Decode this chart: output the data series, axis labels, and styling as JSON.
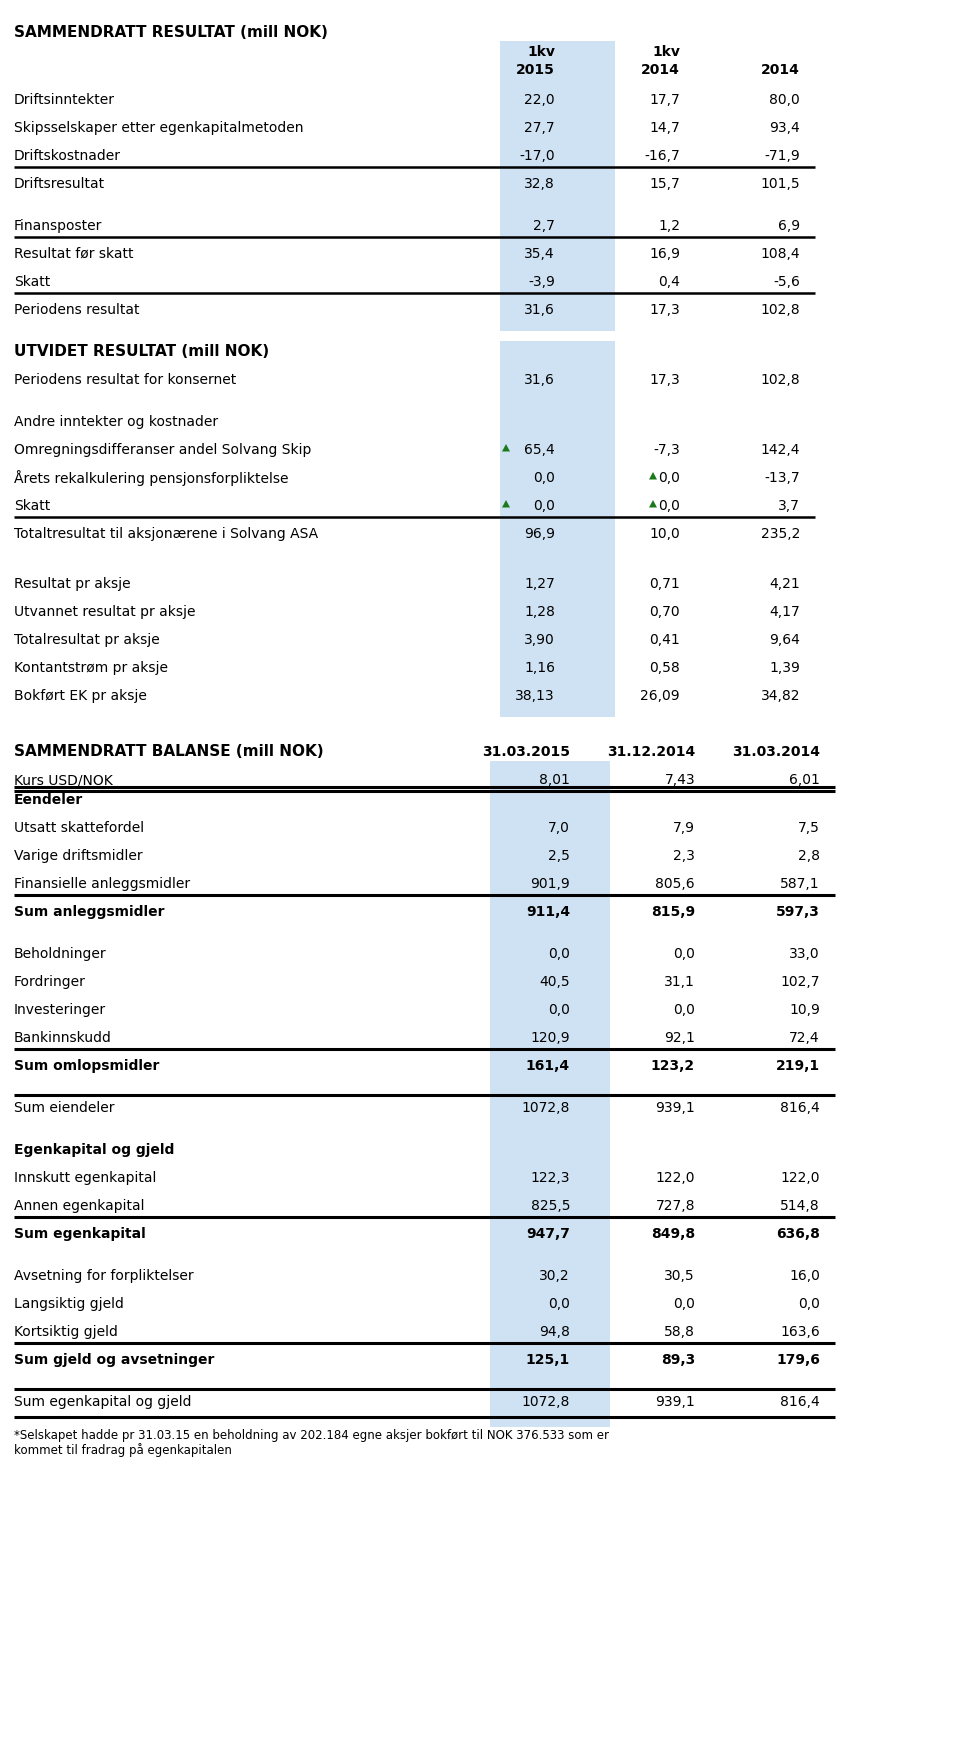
{
  "title1": "SAMMENDRATT RESULTAT (mill NOK)",
  "title2": "UTVIDET RESULTAT (mill NOK)",
  "title3": "SAMMENDRATT BALANSE (mill NOK)",
  "col_headers": [
    "1kv",
    "1kv",
    ""
  ],
  "col_years": [
    "2015",
    "2014",
    "2014"
  ],
  "section1_rows": [
    {
      "label": "Driftsinntekter",
      "v1": "22,0",
      "v2": "17,7",
      "v3": "80,0",
      "bold": false,
      "line_after": false,
      "empty": false
    },
    {
      "label": "Skipsselskaper etter egenkapitalmetoden",
      "v1": "27,7",
      "v2": "14,7",
      "v3": "93,4",
      "bold": false,
      "line_after": false,
      "empty": false
    },
    {
      "label": "Driftskostnader",
      "v1": "-17,0",
      "v2": "-16,7",
      "v3": "-71,9",
      "bold": false,
      "line_after": true,
      "empty": false
    },
    {
      "label": "Driftsresultat",
      "v1": "32,8",
      "v2": "15,7",
      "v3": "101,5",
      "bold": false,
      "line_after": false,
      "empty": false
    },
    {
      "label": "",
      "v1": "",
      "v2": "",
      "v3": "",
      "bold": false,
      "line_after": false,
      "empty": true
    },
    {
      "label": "Finansposter",
      "v1": "2,7",
      "v2": "1,2",
      "v3": "6,9",
      "bold": false,
      "line_after": true,
      "empty": false
    },
    {
      "label": "Resultat før skatt",
      "v1": "35,4",
      "v2": "16,9",
      "v3": "108,4",
      "bold": false,
      "line_after": false,
      "empty": false
    },
    {
      "label": "Skatt",
      "v1": "-3,9",
      "v2": "0,4",
      "v3": "-5,6",
      "bold": false,
      "line_after": true,
      "empty": false
    },
    {
      "label": "Periodens resultat",
      "v1": "31,6",
      "v2": "17,3",
      "v3": "102,8",
      "bold": false,
      "line_after": false,
      "empty": false
    }
  ],
  "section2_rows": [
    {
      "label": "",
      "v1": "",
      "v2": "",
      "v3": "",
      "bold": false,
      "line_after": false,
      "empty": true,
      "m1": false,
      "m2": false
    },
    {
      "label": "Periodens resultat for konsernet",
      "v1": "31,6",
      "v2": "17,3",
      "v3": "102,8",
      "bold": false,
      "line_after": false,
      "empty": false,
      "m1": false,
      "m2": false
    },
    {
      "label": "",
      "v1": "",
      "v2": "",
      "v3": "",
      "bold": false,
      "line_after": false,
      "empty": true,
      "m1": false,
      "m2": false
    },
    {
      "label": "Andre inntekter og kostnader",
      "v1": "",
      "v2": "",
      "v3": "",
      "bold": false,
      "line_after": false,
      "empty": false,
      "m1": false,
      "m2": false
    },
    {
      "label": "Omregningsdifferanser andel Solvang Skip",
      "v1": "65,4",
      "v2": "-7,3",
      "v3": "142,4",
      "bold": false,
      "line_after": false,
      "empty": false,
      "m1": true,
      "m2": false
    },
    {
      "label": "Årets rekalkulering pensjonsforpliktelse",
      "v1": "0,0",
      "v2": "0,0",
      "v3": "-13,7",
      "bold": false,
      "line_after": false,
      "empty": false,
      "m1": false,
      "m2": true
    },
    {
      "label": "Skatt",
      "v1": "0,0",
      "v2": "0,0",
      "v3": "3,7",
      "bold": false,
      "line_after": true,
      "empty": false,
      "m1": true,
      "m2": true
    },
    {
      "label": "Totaltresultat til aksjonærene i Solvang ASA",
      "v1": "96,9",
      "v2": "10,0",
      "v3": "235,2",
      "bold": false,
      "line_after": false,
      "empty": false,
      "m1": false,
      "m2": false
    }
  ],
  "section3_rows": [
    {
      "label": "",
      "v1": "",
      "v2": "",
      "v3": "",
      "empty": true
    },
    {
      "label": "Resultat pr aksje",
      "v1": "1,27",
      "v2": "0,71",
      "v3": "4,21",
      "empty": false
    },
    {
      "label": "Utvannet resultat pr aksje",
      "v1": "1,28",
      "v2": "0,70",
      "v3": "4,17",
      "empty": false
    },
    {
      "label": "Totalresultat pr aksje",
      "v1": "3,90",
      "v2": "0,41",
      "v3": "9,64",
      "empty": false
    },
    {
      "label": "Kontantstrøm pr aksje",
      "v1": "1,16",
      "v2": "0,58",
      "v3": "1,39",
      "empty": false
    },
    {
      "label": "Bokført EK pr aksje",
      "v1": "38,13",
      "v2": "26,09",
      "v3": "34,82",
      "empty": false
    }
  ],
  "bal_headers": [
    "31.03.2015",
    "31.12.2014",
    "31.03.2014"
  ],
  "bal_kurs": [
    "8,01",
    "7,43",
    "6,01"
  ],
  "section_bal1": [
    {
      "label": "Eendeler",
      "v1": "",
      "v2": "",
      "v3": "",
      "bold": true,
      "line_before": true,
      "line_after": false,
      "empty": false
    },
    {
      "label": "Utsatt skattefordel",
      "v1": "7,0",
      "v2": "7,9",
      "v3": "7,5",
      "bold": false,
      "line_before": false,
      "line_after": false,
      "empty": false
    },
    {
      "label": "Varige driftsmidler",
      "v1": "2,5",
      "v2": "2,3",
      "v3": "2,8",
      "bold": false,
      "line_before": false,
      "line_after": false,
      "empty": false
    },
    {
      "label": "Finansielle anleggsmidler",
      "v1": "901,9",
      "v2": "805,6",
      "v3": "587,1",
      "bold": false,
      "line_before": false,
      "line_after": true,
      "empty": false
    },
    {
      "label": "Sum anleggsmidler",
      "v1": "911,4",
      "v2": "815,9",
      "v3": "597,3",
      "bold": true,
      "line_before": false,
      "line_after": false,
      "empty": false
    },
    {
      "label": "",
      "v1": "",
      "v2": "",
      "v3": "",
      "bold": false,
      "line_before": false,
      "line_after": false,
      "empty": true
    },
    {
      "label": "Beholdninger",
      "v1": "0,0",
      "v2": "0,0",
      "v3": "33,0",
      "bold": false,
      "line_before": false,
      "line_after": false,
      "empty": false
    },
    {
      "label": "Fordringer",
      "v1": "40,5",
      "v2": "31,1",
      "v3": "102,7",
      "bold": false,
      "line_before": false,
      "line_after": false,
      "empty": false
    },
    {
      "label": "Investeringer",
      "v1": "0,0",
      "v2": "0,0",
      "v3": "10,9",
      "bold": false,
      "line_before": false,
      "line_after": false,
      "empty": false
    },
    {
      "label": "Bankinnskudd",
      "v1": "120,9",
      "v2": "92,1",
      "v3": "72,4",
      "bold": false,
      "line_before": false,
      "line_after": true,
      "empty": false
    },
    {
      "label": "Sum omlopsmidler",
      "v1": "161,4",
      "v2": "123,2",
      "v3": "219,1",
      "bold": true,
      "line_before": false,
      "line_after": false,
      "empty": false
    },
    {
      "label": "",
      "v1": "",
      "v2": "",
      "v3": "",
      "bold": false,
      "line_before": false,
      "line_after": false,
      "empty": true
    },
    {
      "label": "Sum eiendeler",
      "v1": "1072,8",
      "v2": "939,1",
      "v3": "816,4",
      "bold": false,
      "line_before": true,
      "line_after": false,
      "empty": false
    }
  ],
  "section_bal2": [
    {
      "label": "",
      "v1": "",
      "v2": "",
      "v3": "",
      "bold": false,
      "line_before": false,
      "line_after": false,
      "empty": true
    },
    {
      "label": "Egenkapital og gjeld",
      "v1": "",
      "v2": "",
      "v3": "",
      "bold": true,
      "line_before": false,
      "line_after": false,
      "empty": false
    },
    {
      "label": "Innskutt egenkapital",
      "v1": "122,3",
      "v2": "122,0",
      "v3": "122,0",
      "bold": false,
      "line_before": false,
      "line_after": false,
      "empty": false
    },
    {
      "label": "Annen egenkapital",
      "v1": "825,5",
      "v2": "727,8",
      "v3": "514,8",
      "bold": false,
      "line_before": false,
      "line_after": true,
      "empty": false
    },
    {
      "label": "Sum egenkapital",
      "v1": "947,7",
      "v2": "849,8",
      "v3": "636,8",
      "bold": true,
      "line_before": false,
      "line_after": false,
      "empty": false
    },
    {
      "label": "",
      "v1": "",
      "v2": "",
      "v3": "",
      "bold": false,
      "line_before": false,
      "line_after": false,
      "empty": true
    },
    {
      "label": "Avsetning for forpliktelser",
      "v1": "30,2",
      "v2": "30,5",
      "v3": "16,0",
      "bold": false,
      "line_before": false,
      "line_after": false,
      "empty": false
    },
    {
      "label": "Langsiktig gjeld",
      "v1": "0,0",
      "v2": "0,0",
      "v3": "0,0",
      "bold": false,
      "line_before": false,
      "line_after": false,
      "empty": false
    },
    {
      "label": "Kortsiktig gjeld",
      "v1": "94,8",
      "v2": "58,8",
      "v3": "163,6",
      "bold": false,
      "line_before": false,
      "line_after": true,
      "empty": false
    },
    {
      "label": "Sum gjeld og avsetninger",
      "v1": "125,1",
      "v2": "89,3",
      "v3": "179,6",
      "bold": true,
      "line_before": false,
      "line_after": false,
      "empty": false
    },
    {
      "label": "",
      "v1": "",
      "v2": "",
      "v3": "",
      "bold": false,
      "line_before": false,
      "line_after": false,
      "empty": true
    },
    {
      "label": "Sum egenkapital og gjeld",
      "v1": "1072,8",
      "v2": "939,1",
      "v3": "816,4",
      "bold": false,
      "line_before": true,
      "line_after": false,
      "empty": false
    }
  ],
  "footnote_line1": "*Selskapet hadde pr 31.03.15 en beholdning av 202.184 egne aksjer bokført til NOK 376.533 som er",
  "footnote_line2": "kommet til fradrag på egenkapitalen",
  "highlight_color": "#cfe2f3",
  "bg_color": "#ffffff"
}
